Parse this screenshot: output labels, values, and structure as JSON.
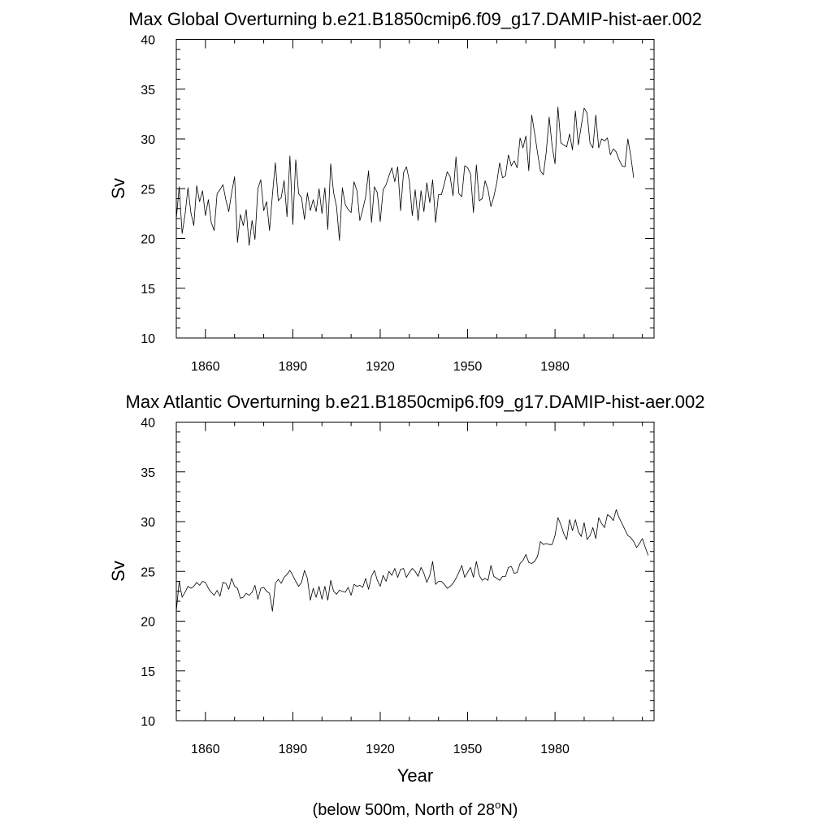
{
  "chart_data": [
    {
      "type": "line",
      "title": "Max Global Overturning b.e21.B1850cmip6.f09_g17.DAMIP-hist-aer.002",
      "xlabel": "",
      "ylabel": "Sv",
      "xlim": [
        1850,
        2014
      ],
      "ylim": [
        10,
        40
      ],
      "xticks": [
        1860,
        1890,
        1920,
        1950,
        1980
      ],
      "yticks": [
        10,
        15,
        20,
        25,
        30,
        35,
        40
      ],
      "grid": false,
      "x_start": 1850,
      "series": [
        {
          "values": [
            22.0,
            25.2,
            20.5,
            22.4,
            25.1,
            22.6,
            21.3,
            25.3,
            23.7,
            24.8,
            22.3,
            23.9,
            21.6,
            20.8,
            24.5,
            24.9,
            25.4,
            23.9,
            22.7,
            24.6,
            26.2,
            19.6,
            22.4,
            21.3,
            22.9,
            19.3,
            21.8,
            19.9,
            25.0,
            25.9,
            22.8,
            23.7,
            20.8,
            24.4,
            27.6,
            23.8,
            24.1,
            25.8,
            22.2,
            28.3,
            21.4,
            27.9,
            24.5,
            24.1,
            21.9,
            24.6,
            22.8,
            23.9,
            22.7,
            25.0,
            22.5,
            25.1,
            20.9,
            27.5,
            24.6,
            23.2,
            19.8,
            25.1,
            23.4,
            22.9,
            22.6,
            25.7,
            24.8,
            21.8,
            22.9,
            24.2,
            26.8,
            21.6,
            25.2,
            24.6,
            21.7,
            24.9,
            25.4,
            26.3,
            27.1,
            25.7,
            27.2,
            22.8,
            26.6,
            27.2,
            25.8,
            22.3,
            24.9,
            21.8,
            24.8,
            22.7,
            25.6,
            23.6,
            25.9,
            21.6,
            24.4,
            24.4,
            25.5,
            26.7,
            26.2,
            24.3,
            28.2,
            24.5,
            24.2,
            27.3,
            27.1,
            26.5,
            22.6,
            27.4,
            23.8,
            24.0,
            25.8,
            24.9,
            23.2,
            24.2,
            25.6,
            27.6,
            26.1,
            26.3,
            28.4,
            27.3,
            27.8,
            27.1,
            30.1,
            29.1,
            30.3,
            26.8,
            32.4,
            30.6,
            28.6,
            26.8,
            26.4,
            28.7,
            32.2,
            29.3,
            27.5,
            33.2,
            29.6,
            29.4,
            29.2,
            30.5,
            28.9,
            32.8,
            29.4,
            31.3,
            33.1,
            32.6,
            29.6,
            29.1,
            32.4,
            29.1,
            30.0,
            29.8,
            30.1,
            28.4,
            29.0,
            28.7,
            27.9,
            27.3,
            27.2,
            30.0,
            28.3,
            26.1
          ]
        }
      ]
    },
    {
      "type": "line",
      "title": "Max Atlantic Overturning b.e21.B1850cmip6.f09_g17.DAMIP-hist-aer.002",
      "xlabel": "Year",
      "ylabel": "Sv",
      "xlim": [
        1850,
        2014
      ],
      "ylim": [
        10,
        40
      ],
      "xticks": [
        1860,
        1890,
        1920,
        1950,
        1980
      ],
      "yticks": [
        10,
        15,
        20,
        25,
        30,
        35,
        40
      ],
      "grid": false,
      "x_start": 1850,
      "series": [
        {
          "values": [
            21.0,
            24.0,
            22.4,
            22.9,
            23.5,
            23.3,
            23.5,
            23.9,
            23.6,
            24.0,
            23.9,
            23.3,
            22.9,
            22.6,
            23.1,
            22.5,
            23.9,
            23.8,
            23.2,
            24.3,
            23.5,
            23.3,
            22.3,
            22.4,
            22.8,
            22.6,
            22.9,
            23.6,
            22.2,
            23.3,
            23.4,
            23.0,
            22.8,
            21.0,
            23.8,
            24.2,
            23.8,
            24.4,
            24.7,
            25.1,
            24.6,
            24.0,
            23.5,
            23.9,
            25.1,
            24.3,
            22.1,
            23.3,
            22.4,
            23.5,
            22.2,
            23.5,
            22.1,
            24.1,
            23.0,
            22.7,
            23.1,
            23.0,
            22.9,
            23.4,
            22.6,
            23.7,
            23.5,
            23.6,
            23.4,
            24.3,
            23.2,
            24.5,
            25.1,
            24.1,
            23.5,
            24.6,
            24.0,
            25.0,
            24.6,
            25.3,
            24.4,
            25.2,
            25.3,
            24.4,
            24.9,
            25.3,
            25.0,
            24.5,
            25.4,
            24.8,
            23.9,
            24.6,
            26.0,
            23.7,
            24.0,
            24.0,
            23.7,
            23.3,
            23.5,
            23.8,
            24.3,
            24.9,
            25.6,
            24.4,
            24.9,
            25.4,
            24.4,
            26.0,
            24.6,
            24.1,
            24.3,
            24.1,
            25.6,
            24.5,
            24.3,
            24.1,
            24.5,
            24.5,
            25.4,
            25.5,
            24.8,
            24.9,
            25.8,
            26.1,
            26.7,
            25.9,
            25.8,
            26.0,
            26.5,
            28.0,
            27.7,
            27.8,
            27.7,
            27.7,
            28.6,
            30.4,
            29.7,
            28.8,
            28.2,
            30.2,
            29.1,
            30.2,
            29.0,
            28.5,
            29.9,
            28.2,
            28.6,
            29.4,
            28.3,
            30.4,
            29.8,
            29.4,
            30.7,
            30.5,
            30.1,
            31.2,
            30.4,
            29.8,
            29.2,
            28.6,
            28.4,
            28.0,
            27.4,
            27.8,
            28.3,
            27.4,
            26.6
          ]
        }
      ]
    }
  ],
  "footnote": {
    "prefix": "(below 500m, North of 28",
    "superscript": "o",
    "suffix": "N)"
  }
}
